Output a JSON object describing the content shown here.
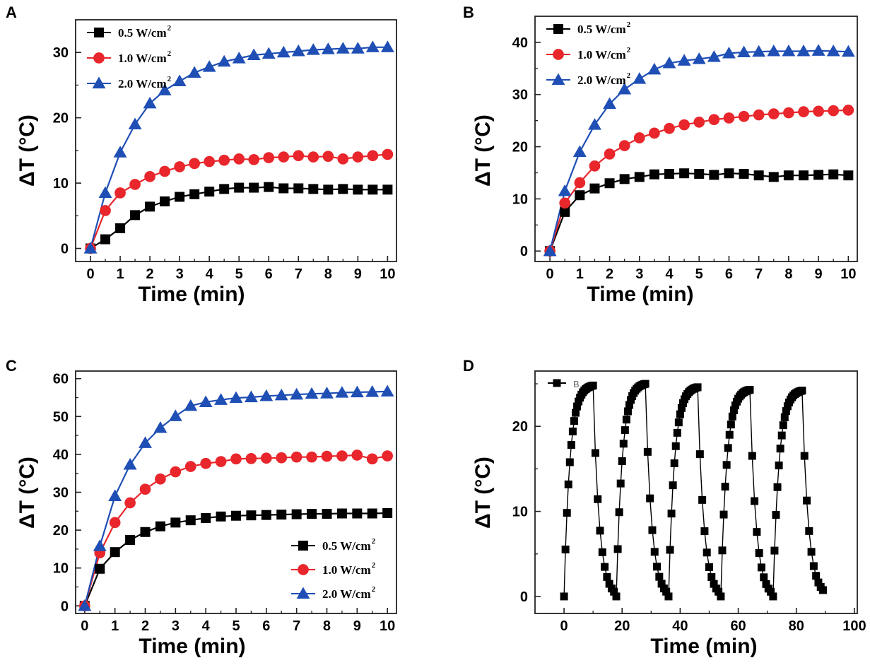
{
  "chart_data": [
    {
      "panel": "A",
      "type": "line",
      "xlabel": "Time (min)",
      "ylabel": "ΔT (°C)",
      "xlim": [
        -0.5,
        10.3
      ],
      "ylim": [
        -2,
        35
      ],
      "xticks": [
        0,
        1,
        2,
        3,
        4,
        5,
        6,
        7,
        8,
        9,
        10
      ],
      "yticks": [
        0,
        10,
        20,
        30
      ],
      "legend_position": "top-left",
      "x": [
        0,
        0.5,
        1,
        1.5,
        2,
        2.5,
        3,
        3.5,
        4,
        4.5,
        5,
        5.5,
        6,
        6.5,
        7,
        7.5,
        8,
        8.5,
        9,
        9.5,
        10
      ],
      "series": [
        {
          "name": "0.5 W/cm",
          "sup": "2",
          "color": "#000000",
          "marker": "square",
          "values": [
            0,
            1.4,
            3.1,
            5.1,
            6.4,
            7.2,
            7.9,
            8.3,
            8.7,
            9.1,
            9.3,
            9.3,
            9.4,
            9.2,
            9.2,
            9.1,
            9.0,
            9.1,
            9.0,
            9.0,
            9.0
          ]
        },
        {
          "name": "1.0 W/cm",
          "sup": "2",
          "color": "#e8262b",
          "marker": "circle",
          "values": [
            0,
            5.8,
            8.5,
            9.8,
            11.0,
            11.8,
            12.5,
            13.0,
            13.3,
            13.5,
            13.7,
            13.6,
            13.9,
            14.0,
            14.2,
            14.0,
            14.1,
            13.7,
            14.0,
            14.2,
            14.4
          ]
        },
        {
          "name": "2.0 W/cm",
          "sup": "2",
          "color": "#1f4fb5",
          "marker": "triangle",
          "values": [
            0,
            8.5,
            14.7,
            19.0,
            22.2,
            24.2,
            25.6,
            26.9,
            27.8,
            28.6,
            29.1,
            29.6,
            29.8,
            30.0,
            30.2,
            30.4,
            30.5,
            30.6,
            30.6,
            30.8,
            30.8
          ]
        }
      ]
    },
    {
      "panel": "B",
      "type": "line",
      "xlabel": "Time (min)",
      "ylabel": "ΔT (°C)",
      "xlim": [
        -0.5,
        10.3
      ],
      "ylim": [
        -2,
        45
      ],
      "xticks": [
        0,
        1,
        2,
        3,
        4,
        5,
        6,
        7,
        8,
        9,
        10
      ],
      "yticks": [
        0,
        10,
        20,
        30,
        40
      ],
      "legend_position": "top-left",
      "x": [
        0,
        0.5,
        1,
        1.5,
        2,
        2.5,
        3,
        3.5,
        4,
        4.5,
        5,
        5.5,
        6,
        6.5,
        7,
        7.5,
        8,
        8.5,
        9,
        9.5,
        10
      ],
      "series": [
        {
          "name": "0.5 W/cm",
          "sup": "2",
          "color": "#000000",
          "marker": "square",
          "values": [
            0,
            7.5,
            10.7,
            12.0,
            13.0,
            13.8,
            14.2,
            14.7,
            14.8,
            14.9,
            14.8,
            14.6,
            14.9,
            14.8,
            14.5,
            14.2,
            14.5,
            14.5,
            14.6,
            14.7,
            14.5
          ]
        },
        {
          "name": "1.0 W/cm",
          "sup": "2",
          "color": "#e8262b",
          "marker": "circle",
          "values": [
            0,
            9.2,
            13.1,
            16.3,
            18.6,
            20.2,
            21.7,
            22.6,
            23.5,
            24.2,
            24.7,
            25.2,
            25.5,
            25.8,
            26.1,
            26.3,
            26.5,
            26.7,
            26.8,
            26.9,
            27.0
          ]
        },
        {
          "name": "2.0 W/cm",
          "sup": "2",
          "color": "#1f4fb5",
          "marker": "triangle",
          "values": [
            0,
            11.5,
            19.0,
            24.2,
            28.2,
            31.0,
            33.0,
            34.8,
            36.0,
            36.5,
            36.8,
            37.2,
            37.9,
            38.1,
            38.2,
            38.3,
            38.3,
            38.3,
            38.4,
            38.3,
            38.2
          ]
        }
      ]
    },
    {
      "panel": "C",
      "type": "line",
      "xlabel": "Time (min)",
      "ylabel": "ΔT (°C)",
      "xlim": [
        -0.3,
        10.3
      ],
      "ylim": [
        -2,
        62
      ],
      "xticks": [
        0,
        1,
        2,
        3,
        4,
        5,
        6,
        7,
        8,
        9,
        10
      ],
      "yticks": [
        0,
        10,
        20,
        30,
        40,
        50,
        60
      ],
      "legend_position": "bottom-right",
      "x": [
        0,
        0.5,
        1,
        1.5,
        2,
        2.5,
        3,
        3.5,
        4,
        4.5,
        5,
        5.5,
        6,
        6.5,
        7,
        7.5,
        8,
        8.5,
        9,
        9.5,
        10
      ],
      "series": [
        {
          "name": "0.5 W/cm",
          "sup": "2",
          "color": "#000000",
          "marker": "square",
          "values": [
            0,
            9.8,
            14.2,
            17.4,
            19.5,
            21.0,
            22.0,
            22.6,
            23.2,
            23.6,
            23.8,
            23.9,
            24.0,
            24.1,
            24.2,
            24.3,
            24.3,
            24.4,
            24.4,
            24.4,
            24.5
          ]
        },
        {
          "name": "1.0 W/cm",
          "sup": "2",
          "color": "#e8262b",
          "marker": "circle",
          "values": [
            0,
            14.0,
            22.0,
            27.2,
            30.8,
            33.5,
            35.4,
            36.8,
            37.6,
            38.1,
            38.8,
            38.9,
            39.0,
            39.1,
            39.3,
            39.3,
            39.5,
            39.6,
            39.8,
            38.8,
            39.6
          ]
        },
        {
          "name": "2.0 W/cm",
          "sup": "2",
          "color": "#1f4fb5",
          "marker": "triangle",
          "values": [
            0,
            15.8,
            29.0,
            37.3,
            43.0,
            47.0,
            50.1,
            52.8,
            53.8,
            54.4,
            54.9,
            55.1,
            55.4,
            55.6,
            55.8,
            56.0,
            56.1,
            56.3,
            56.4,
            56.5,
            56.6
          ]
        }
      ]
    },
    {
      "panel": "D",
      "type": "line",
      "xlabel": "Time (min)",
      "ylabel": "ΔT (°C)",
      "xlim": [
        -10,
        101
      ],
      "ylim": [
        -2,
        26.5
      ],
      "xticks": [
        0,
        20,
        40,
        60,
        80,
        100
      ],
      "yticks": [
        0,
        10,
        20
      ],
      "legend_position": "top-left",
      "cycles": {
        "starts": [
          0,
          18,
          36,
          54,
          72
        ],
        "off_at": [
          10,
          28,
          46,
          64,
          82
        ],
        "peaks": [
          24.8,
          25.0,
          24.6,
          24.3,
          24.2
        ],
        "ends": [
          0.3,
          0.3,
          0.3,
          0.3,
          0.5
        ]
      },
      "series": [
        {
          "name": "B",
          "color": "#000000",
          "marker": "square"
        }
      ]
    }
  ]
}
